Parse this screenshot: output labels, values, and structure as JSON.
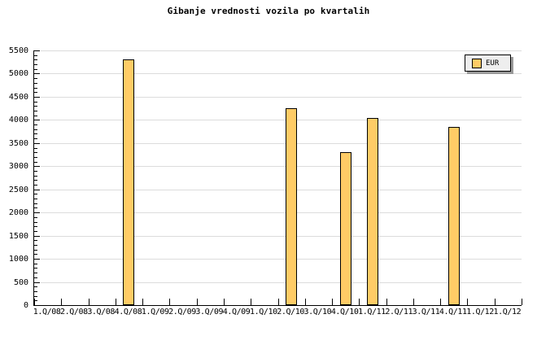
{
  "title": "Gibanje vrednosti vozila po kvartalih",
  "legend": {
    "label": "EUR"
  },
  "colors": {
    "background": "#FFFFFF",
    "bar_fill": "#FFCC66",
    "bar_border": "#000000",
    "grid": "#DCDCDC",
    "axis": "#000000",
    "text": "#000000",
    "legend_bg": "#EEEEEE",
    "legend_shadow": "#999999"
  },
  "chart_data": {
    "type": "bar",
    "title": "Gibanje vrednosti vozila po kvartalih",
    "xlabel": "",
    "ylabel": "",
    "categories": [
      "1.Q/08",
      "2.Q/08",
      "3.Q/08",
      "4.Q/08",
      "1.Q/09",
      "2.Q/09",
      "3.Q/09",
      "4.Q/09",
      "1.Q/10",
      "2.Q/10",
      "3.Q/10",
      "4.Q/10",
      "1.Q/11",
      "2.Q/11",
      "3.Q/11",
      "4.Q/11",
      "1.Q/12",
      "1.Q/12"
    ],
    "series": [
      {
        "name": "EUR",
        "values": [
          null,
          null,
          null,
          5300,
          null,
          null,
          null,
          null,
          null,
          4250,
          null,
          3300,
          4050,
          null,
          null,
          3850,
          null,
          null
        ]
      }
    ],
    "ylim": [
      0,
      5500
    ],
    "ytick_major": 500,
    "ytick_minor": 100,
    "ytick_labels": [
      "0",
      "500",
      "1000",
      "1500",
      "2000",
      "2500",
      "3000",
      "3500",
      "4000",
      "4500",
      "5000",
      "5500"
    ],
    "grid": true,
    "legend_position": "top-right"
  }
}
